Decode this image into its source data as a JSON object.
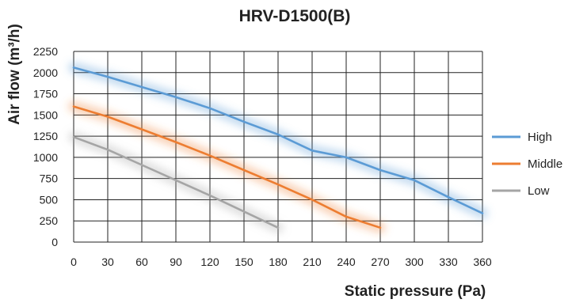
{
  "chart_data": {
    "type": "line",
    "title": "HRV-D1500(B)",
    "xlabel": "Static pressure (Pa)",
    "ylabel": "Air flow (m³/h)",
    "xlim": [
      0,
      360
    ],
    "ylim": [
      0,
      2250
    ],
    "xticks": [
      0,
      30,
      60,
      90,
      120,
      150,
      180,
      210,
      240,
      270,
      300,
      330,
      360
    ],
    "yticks": [
      0,
      250,
      500,
      750,
      1000,
      1250,
      1500,
      1750,
      2000,
      2250
    ],
    "grid": true,
    "legend_position": "right",
    "series": [
      {
        "name": "High",
        "color": "#5b9bd5",
        "x": [
          0,
          30,
          60,
          90,
          120,
          150,
          180,
          210,
          240,
          270,
          300,
          330,
          360
        ],
        "y": [
          2060,
          1950,
          1830,
          1710,
          1580,
          1420,
          1270,
          1080,
          1000,
          850,
          730,
          530,
          340
        ]
      },
      {
        "name": "Middle",
        "color": "#ed7d31",
        "x": [
          0,
          30,
          60,
          90,
          120,
          150,
          180,
          210,
          240,
          270
        ],
        "y": [
          1600,
          1480,
          1330,
          1180,
          1020,
          850,
          680,
          500,
          300,
          170
        ]
      },
      {
        "name": "Low",
        "color": "#a5a5a5",
        "x": [
          0,
          30,
          60,
          90,
          120,
          150,
          180
        ],
        "y": [
          1240,
          1090,
          910,
          730,
          550,
          360,
          170
        ]
      }
    ]
  }
}
